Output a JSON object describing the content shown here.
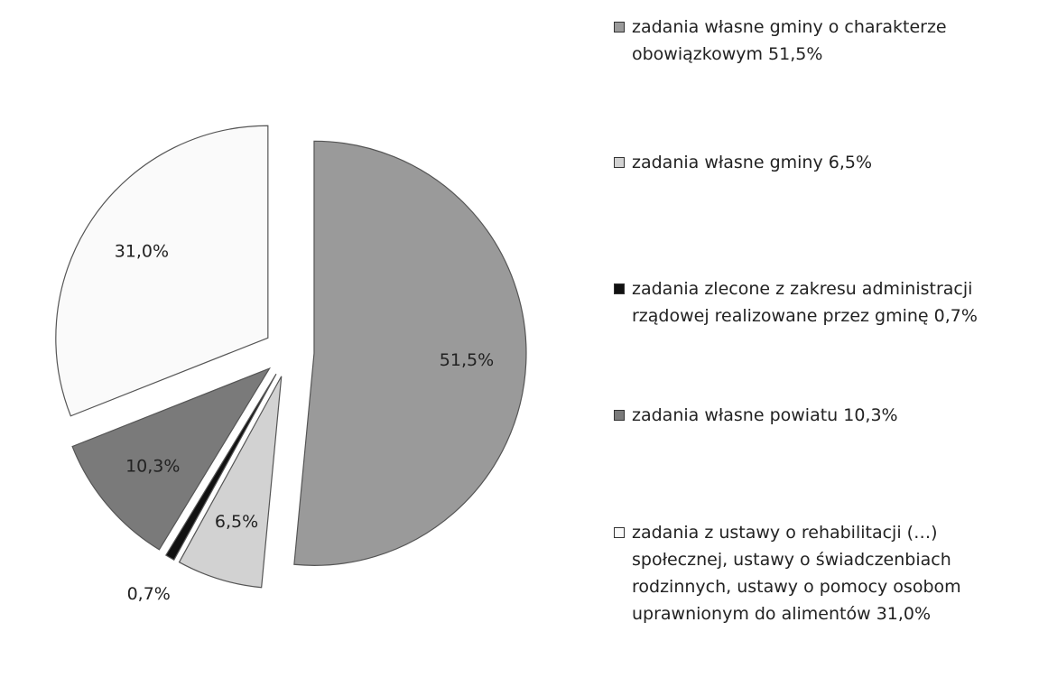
{
  "chart_data": {
    "type": "pie",
    "categories": [
      "zadania własne gminy o charakterze obowiązkowym 51,5%",
      "zadania własne gminy 6,5%",
      "zadania zlecone z zakresu administracji rządowej realizowane przez gminę 0,7%",
      "zadania własne powiatu 10,3%",
      "zadania z ustawy o rehabilitacji (…) społecznej, ustawy o świadczenbiach rodzinnych, ustawy o pomocy osobom uprawnionym do alimentów 31,0%"
    ],
    "values": [
      51.5,
      6.5,
      0.7,
      10.3,
      31.0
    ],
    "value_labels": [
      "51,5%",
      "6,5%",
      "0,7%",
      "10,3%",
      "31,0%"
    ],
    "colors": [
      "#9a9a9a",
      "#d2d2d2",
      "#111111",
      "#7a7a7a",
      "#fafafa"
    ],
    "legend": "right"
  }
}
